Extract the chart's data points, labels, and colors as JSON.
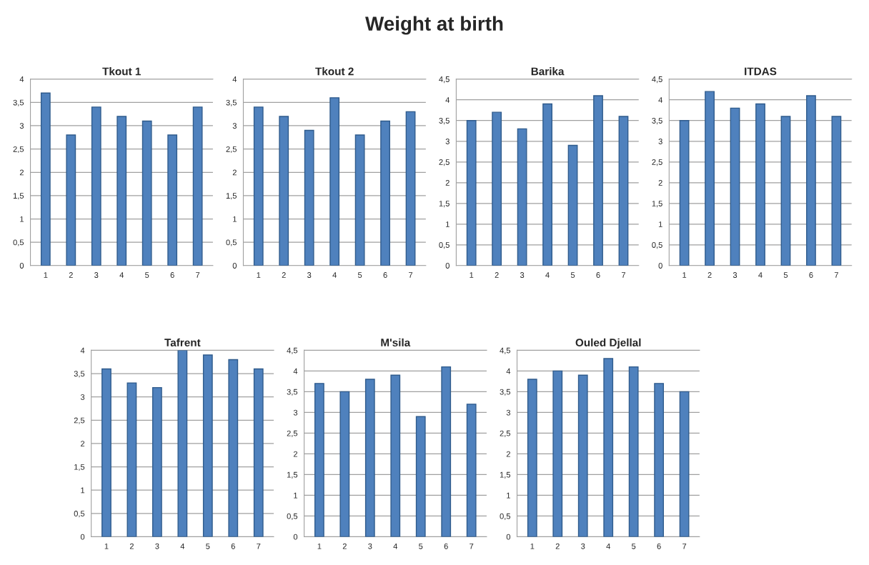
{
  "chart_data": [
    {
      "type": "bar",
      "title": "Tkout 1",
      "annotations": [
        "Weight at birth"
      ],
      "categories": [
        "1",
        "2",
        "3",
        "4",
        "5",
        "6",
        "7"
      ],
      "values": [
        3.7,
        2.8,
        3.4,
        3.2,
        3.1,
        2.8,
        3.4
      ],
      "color": "#4f81bd",
      "ylim": [
        0,
        4
      ],
      "yticks": [
        0,
        {
          "value": 0.5,
          "label": "0,5"
        },
        1,
        {
          "value": 1.5,
          "label": "1,5"
        },
        2,
        {
          "value": 2.5,
          "label": "2,5"
        },
        3,
        {
          "value": 3.5,
          "label": "3,5"
        },
        4
      ],
      "grid": "y"
    },
    {
      "type": "bar",
      "title": "Tkout 2",
      "categories": [
        "1",
        "2",
        "3",
        "4",
        "5",
        "6",
        "7"
      ],
      "values": [
        3.4,
        3.2,
        2.9,
        3.6,
        2.8,
        3.1,
        3.3
      ],
      "color": "#4f81bd",
      "ylim": [
        0,
        4
      ],
      "yticks": [
        0,
        {
          "value": 0.5,
          "label": "0,5"
        },
        1,
        {
          "value": 1.5,
          "label": "1,5"
        },
        2,
        {
          "value": 2.5,
          "label": "2,5"
        },
        3,
        {
          "value": 3.5,
          "label": "3,5"
        },
        4
      ],
      "grid": "y"
    },
    {
      "type": "bar",
      "title": "Barika",
      "categories": [
        "1",
        "2",
        "3",
        "4",
        "5",
        "6",
        "7"
      ],
      "values": [
        3.5,
        3.7,
        3.3,
        3.9,
        2.9,
        4.1,
        3.6
      ],
      "color": "#4f81bd",
      "ylim": [
        0,
        4.5
      ],
      "yticks": [
        0,
        {
          "value": 0.5,
          "label": "0,5"
        },
        1,
        {
          "value": 1.5,
          "label": "1,5"
        },
        2,
        {
          "value": 2.5,
          "label": "2,5"
        },
        3,
        {
          "value": 3.5,
          "label": "3,5"
        },
        4,
        {
          "value": 4.5,
          "label": "4,5"
        }
      ],
      "grid": "y"
    },
    {
      "type": "bar",
      "title": "ITDAS",
      "categories": [
        "1",
        "2",
        "3",
        "4",
        "5",
        "6",
        "7"
      ],
      "values": [
        3.5,
        4.2,
        3.8,
        3.9,
        3.6,
        4.1,
        3.6
      ],
      "color": "#4f81bd",
      "ylim": [
        0,
        4.5
      ],
      "yticks": [
        0,
        {
          "value": 0.5,
          "label": "0,5"
        },
        1,
        {
          "value": 1.5,
          "label": "1,5"
        },
        2,
        {
          "value": 2.5,
          "label": "2,5"
        },
        3,
        {
          "value": 3.5,
          "label": "3,5"
        },
        4,
        {
          "value": 4.5,
          "label": "4,5"
        }
      ],
      "grid": "y"
    },
    {
      "type": "bar",
      "title": "Tafrent",
      "categories": [
        "1",
        "2",
        "3",
        "4",
        "5",
        "6",
        "7"
      ],
      "values": [
        3.6,
        3.3,
        3.2,
        4.0,
        3.9,
        3.8,
        3.6
      ],
      "color": "#4f81bd",
      "ylim": [
        0,
        4
      ],
      "yticks": [
        0,
        {
          "value": 0.5,
          "label": "0,5"
        },
        1,
        {
          "value": 1.5,
          "label": "1,5"
        },
        2,
        {
          "value": 2.5,
          "label": "2,5"
        },
        3,
        {
          "value": 3.5,
          "label": "3,5"
        },
        4
      ],
      "grid": "y"
    },
    {
      "type": "bar",
      "title": "M'sila",
      "categories": [
        "1",
        "2",
        "3",
        "4",
        "5",
        "6",
        "7"
      ],
      "values": [
        3.7,
        3.5,
        3.8,
        3.9,
        2.9,
        4.1,
        3.2
      ],
      "color": "#4f81bd",
      "ylim": [
        0,
        4.5
      ],
      "yticks": [
        0,
        {
          "value": 0.5,
          "label": "0,5"
        },
        1,
        {
          "value": 1.5,
          "label": "1,5"
        },
        2,
        {
          "value": 2.5,
          "label": "2,5"
        },
        3,
        {
          "value": 3.5,
          "label": "3,5"
        },
        4,
        {
          "value": 4.5,
          "label": "4,5"
        }
      ],
      "grid": "y"
    },
    {
      "type": "bar",
      "title": "Ouled Djellal",
      "categories": [
        "1",
        "2",
        "3",
        "4",
        "5",
        "6",
        "7"
      ],
      "values": [
        3.8,
        4.0,
        3.9,
        4.3,
        4.1,
        3.7,
        3.5
      ],
      "color": "#4f81bd",
      "ylim": [
        0,
        4.5
      ],
      "yticks": [
        0,
        {
          "value": 0.5,
          "label": "0,5"
        },
        1,
        {
          "value": 1.5,
          "label": "1,5"
        },
        2,
        {
          "value": 2.5,
          "label": "2,5"
        },
        3,
        {
          "value": 3.5,
          "label": "3,5"
        },
        4,
        {
          "value": 4.5,
          "label": "4,5"
        }
      ],
      "grid": "y"
    }
  ]
}
